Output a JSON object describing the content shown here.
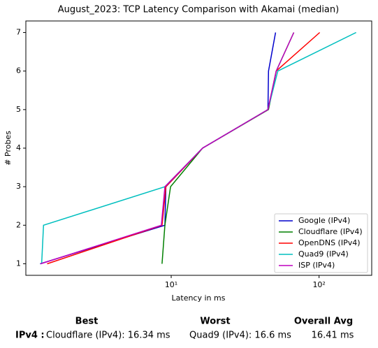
{
  "chart_data": {
    "type": "line",
    "title": "August_2023: TCP Latency Comparison with Akamai (median)",
    "xlabel": "Latency in ms",
    "ylabel": "# Probes",
    "xscale": "log",
    "xlim": [
      1.04,
      227
    ],
    "xticks": [
      {
        "value": 10,
        "label": "10¹"
      },
      {
        "value": 100,
        "label": "10²"
      }
    ],
    "ylim": [
      0.7,
      7.3
    ],
    "yticks": [
      1,
      2,
      3,
      4,
      5,
      6,
      7
    ],
    "legend": "lower right",
    "series": [
      {
        "name": "Google (IPv4)",
        "color": "#0000cc",
        "x": [
          1.3,
          9.06,
          9.2,
          16.3,
          45.1,
          45.5,
          50.8
        ],
        "values": [
          1,
          2,
          3,
          4,
          5,
          6,
          7
        ]
      },
      {
        "name": "Cloudflare (IPv4)",
        "color": "#008000",
        "x": [
          8.67,
          9.06,
          9.9,
          16.3,
          45.5,
          51.3,
          67.5
        ],
        "values": [
          1,
          2,
          3,
          4,
          5,
          6,
          7
        ]
      },
      {
        "name": "OpenDNS (IPv4)",
        "color": "#ff0000",
        "x": [
          1.45,
          8.67,
          9.2,
          16.3,
          45.1,
          51.3,
          101
        ],
        "values": [
          1,
          2,
          3,
          4,
          5,
          6,
          7
        ]
      },
      {
        "name": "Quad9 (IPv4)",
        "color": "#00bfbf",
        "x": [
          1.33,
          1.37,
          9.06,
          16.3,
          45.1,
          52.6,
          178
        ],
        "values": [
          1,
          2,
          3,
          4,
          5,
          6,
          7
        ]
      },
      {
        "name": "ISP (IPv4)",
        "color": "#bf00bf",
        "x": [
          1.31,
          8.58,
          9.06,
          16.3,
          45.1,
          51.3,
          67.5
        ],
        "values": [
          1,
          2,
          3,
          4,
          5,
          6,
          7
        ]
      }
    ]
  },
  "summary": {
    "headers": [
      "Best",
      "Worst",
      "Overall Avg"
    ],
    "row": {
      "label": "IPv4 :",
      "best": "Cloudflare (IPv4): 16.34 ms",
      "worst": "Quad9 (IPv4): 16.6 ms",
      "avg": "16.41 ms"
    }
  }
}
